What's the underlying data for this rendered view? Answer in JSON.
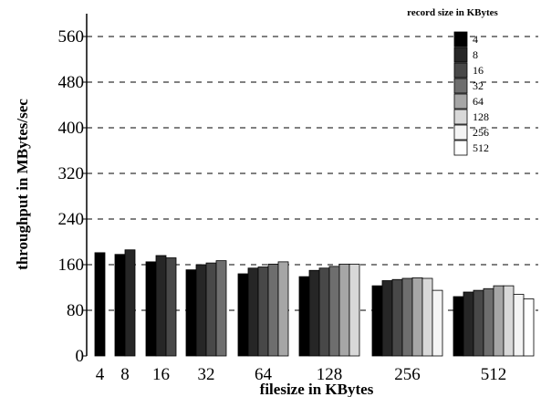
{
  "chart_data": {
    "type": "bar",
    "xlabel": "filesize in KBytes",
    "ylabel": "throughput in MBytes/sec",
    "ylim": [
      0,
      600
    ],
    "yticks": [
      0,
      80,
      160,
      240,
      320,
      400,
      480,
      560
    ],
    "grid": "horizontal dashed",
    "legend_title": "record size in KBytes",
    "legend_position": "top-right",
    "categories": [
      "4",
      "8",
      "16",
      "32",
      "64",
      "128",
      "256",
      "512"
    ],
    "series": [
      {
        "name": "4",
        "color": "#000000",
        "values": [
          181,
          178,
          165,
          151,
          144,
          139,
          123,
          104
        ]
      },
      {
        "name": "8",
        "color": "#262626",
        "values": [
          null,
          186,
          176,
          160,
          154,
          150,
          132,
          112
        ]
      },
      {
        "name": "16",
        "color": "#484848",
        "values": [
          null,
          null,
          172,
          163,
          156,
          154,
          134,
          115
        ]
      },
      {
        "name": "32",
        "color": "#6e6e6e",
        "values": [
          null,
          null,
          null,
          167,
          161,
          157,
          136,
          118
        ]
      },
      {
        "name": "64",
        "color": "#a6a6a6",
        "values": [
          null,
          null,
          null,
          null,
          165,
          161,
          137,
          123
        ]
      },
      {
        "name": "128",
        "color": "#d8d8d8",
        "values": [
          null,
          null,
          null,
          null,
          null,
          161,
          136,
          123
        ]
      },
      {
        "name": "256",
        "color": "#f4f4f4",
        "values": [
          null,
          null,
          null,
          null,
          null,
          null,
          115,
          108
        ]
      },
      {
        "name": "512",
        "color": "#ffffff",
        "values": [
          null,
          null,
          null,
          null,
          null,
          null,
          null,
          100
        ]
      }
    ]
  }
}
